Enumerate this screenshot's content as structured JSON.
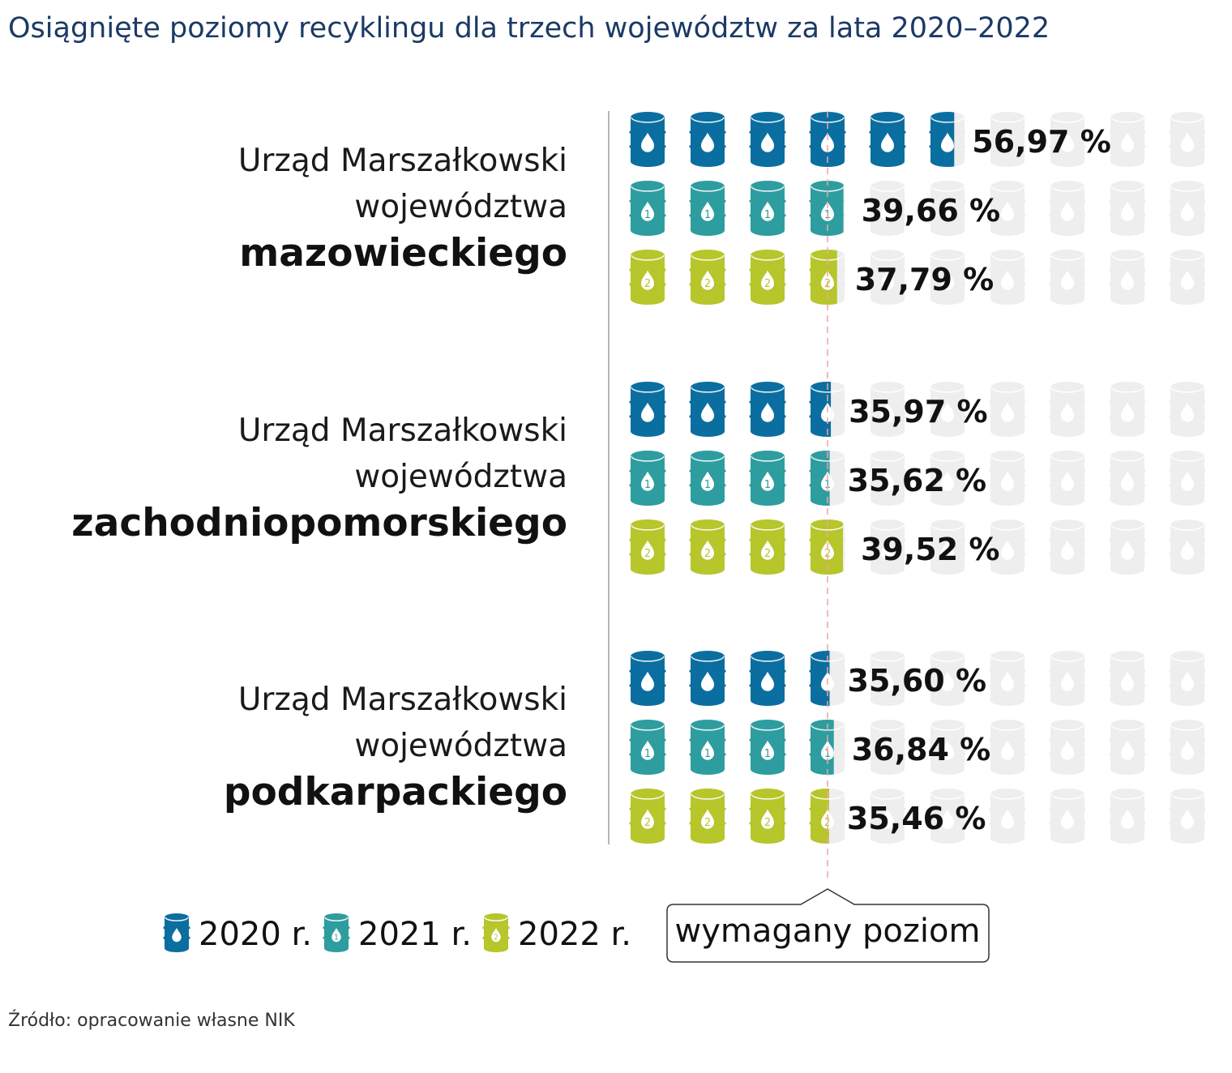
{
  "chart_data": {
    "type": "pictogram-bar",
    "title": "Osiągnięte poziomy recyklingu dla trzech województw za lata 2020–2022",
    "unit_per_icon": 10,
    "icons_per_row": 10,
    "xlim": [
      0,
      100
    ],
    "required_level": 35,
    "required_level_label": "wymagany poziom",
    "series": [
      {
        "name": "2020 r.",
        "color": "#0b6ea0",
        "icon": "barrel-drop-icon"
      },
      {
        "name": "2021 r.",
        "color": "#2e9d9f",
        "icon": "barrel-drop-1-icon",
        "mark": "1"
      },
      {
        "name": "2022 r.",
        "color": "#b6c62b",
        "icon": "barrel-drop-2-icon",
        "mark": "2"
      }
    ],
    "groups": [
      {
        "line1": "Urząd Marszałkowski",
        "line2": "województwa",
        "name": "mazowieckiego",
        "values": [
          56.97,
          39.66,
          37.79
        ],
        "labels": [
          "56,97 %",
          "39,66 %",
          "37,79 %"
        ]
      },
      {
        "line1": "Urząd Marszałkowski",
        "line2": "województwa",
        "name": "zachodniopomorskiego",
        "values": [
          35.97,
          35.62,
          39.52
        ],
        "labels": [
          "35,97 %",
          "35,62 %",
          "39,52 %"
        ]
      },
      {
        "line1": "Urząd Marszałkowski",
        "line2": "województwa",
        "name": "podkarpackiego",
        "values": [
          35.6,
          36.84,
          35.46
        ],
        "labels": [
          "35,60 %",
          "36,84 %",
          "35,46 %"
        ]
      }
    ],
    "empty_color": "#eeeeee",
    "required_line_color": "#f2a3a3"
  },
  "source": "Źródło: opracowanie własne NIK"
}
